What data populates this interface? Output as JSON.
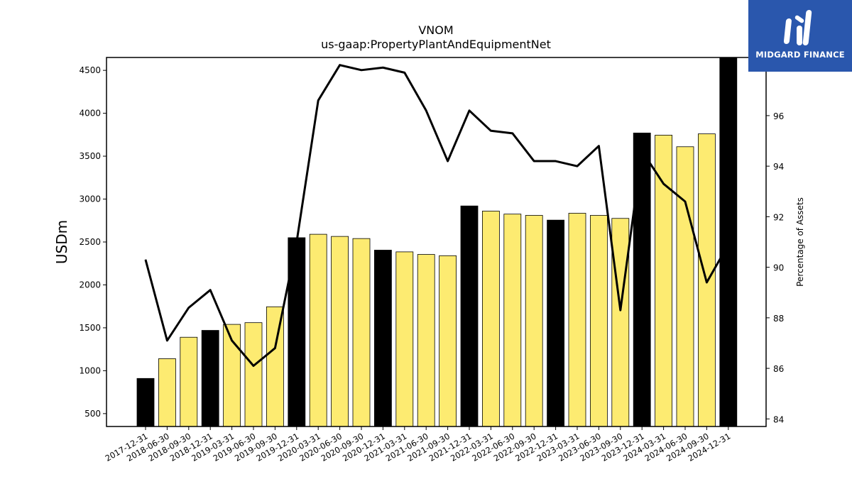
{
  "chart_data": {
    "type": "bar",
    "title": "VNOM",
    "subtitle": "us-gaap:PropertyPlantAndEquipmentNet",
    "ylabel": "USDm",
    "y2label": "Percentage of Assets",
    "ylim": [
      350,
      4650
    ],
    "y2lim": [
      83.7,
      98.3
    ],
    "yticks": [
      500,
      1000,
      1500,
      2000,
      2500,
      3000,
      3500,
      4000,
      4500
    ],
    "y2ticks": [
      84,
      86,
      88,
      90,
      92,
      94,
      96
    ],
    "categories": [
      "2017-12-31",
      "2018-06-30",
      "2018-09-30",
      "2018-12-31",
      "2019-03-31",
      "2019-06-30",
      "2019-09-30",
      "2019-12-31",
      "2020-03-31",
      "2020-06-30",
      "2020-09-30",
      "2020-12-31",
      "2021-03-31",
      "2021-06-30",
      "2021-09-30",
      "2021-12-31",
      "2022-03-31",
      "2022-06-30",
      "2022-09-30",
      "2022-12-31",
      "2023-03-31",
      "2023-06-30",
      "2023-09-30",
      "2023-12-31",
      "2024-03-31",
      "2024-06-30",
      "2024-09-30",
      "2024-12-31"
    ],
    "series": [
      {
        "type": "bar",
        "values": [
          910,
          1140,
          1390,
          1470,
          1540,
          1560,
          1745,
          2550,
          2590,
          2565,
          2540,
          2405,
          2385,
          2355,
          2340,
          2920,
          2860,
          2825,
          2810,
          2755,
          2835,
          2810,
          2775,
          3770,
          3745,
          3610,
          3760,
          4650
        ],
        "highlight": [
          true,
          false,
          false,
          true,
          false,
          false,
          false,
          true,
          false,
          false,
          false,
          true,
          false,
          false,
          false,
          true,
          false,
          false,
          false,
          true,
          false,
          false,
          false,
          true,
          false,
          false,
          false,
          true
        ],
        "colors": {
          "highlight": "#000000",
          "normal": "#fdeb71"
        }
      },
      {
        "type": "line",
        "axis": "right",
        "values": [
          90.3,
          87.1,
          88.4,
          89.1,
          87.1,
          86.1,
          86.8,
          91.0,
          96.6,
          98.0,
          97.8,
          97.9,
          97.7,
          96.2,
          94.2,
          96.2,
          95.4,
          95.3,
          94.2,
          94.2,
          94.0,
          94.8,
          88.3,
          94.6,
          93.3,
          92.6,
          89.4,
          90.9
        ],
        "color": "#000000"
      }
    ]
  },
  "logo": {
    "text": "MIDGARD FINANCE",
    "icon": "midgard-finance-logo-mark",
    "background": "#2a57ad"
  }
}
